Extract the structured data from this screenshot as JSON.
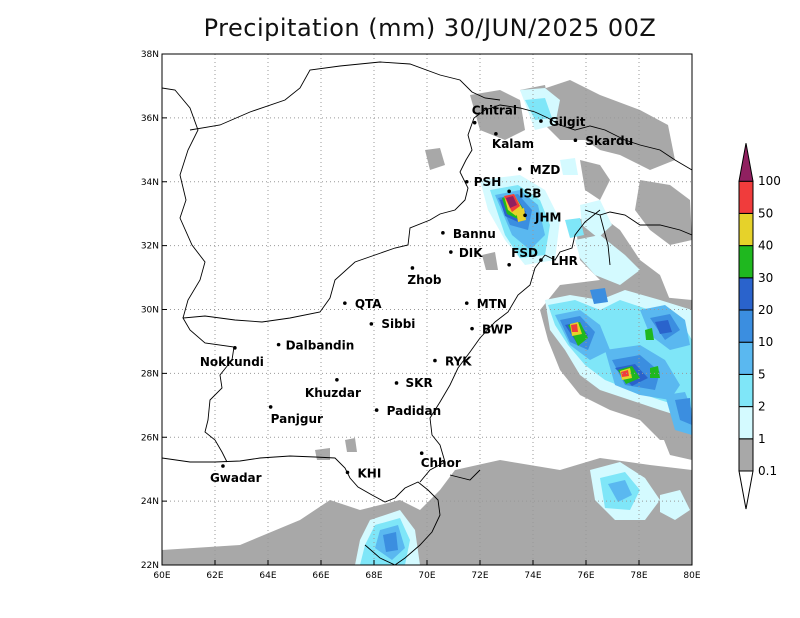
{
  "title": "Precipitation (mm) 30/JUN/2025 00Z",
  "x_ticks": [
    "60E",
    "62E",
    "64E",
    "66E",
    "68E",
    "70E",
    "72E",
    "74E",
    "76E",
    "78E",
    "80E"
  ],
  "y_ticks": [
    "22N",
    "24N",
    "26N",
    "28N",
    "30N",
    "32N",
    "34N",
    "36N",
    "38N"
  ],
  "colorbar": {
    "levels": [
      "0.1",
      "1",
      "2",
      "5",
      "10",
      "20",
      "30",
      "40",
      "50",
      "100"
    ],
    "colors": [
      "#a8a8a8",
      "#d4faff",
      "#7fe6f8",
      "#5ab8f0",
      "#3b8ee0",
      "#2a63cc",
      "#1fb81f",
      "#e6d22a",
      "#f03c3c",
      "#902060"
    ]
  },
  "cities": [
    {
      "name": "Chitral",
      "lon": 71.8,
      "lat": 35.85
    },
    {
      "name": "Kalam",
      "lon": 72.6,
      "lat": 35.5
    },
    {
      "name": "Gilgit",
      "lon": 74.3,
      "lat": 35.9
    },
    {
      "name": "Skardu",
      "lon": 75.6,
      "lat": 35.3
    },
    {
      "name": "MZD",
      "lon": 73.5,
      "lat": 34.4
    },
    {
      "name": "PSH",
      "lon": 71.5,
      "lat": 34.0
    },
    {
      "name": "ISB",
      "lon": 73.1,
      "lat": 33.7
    },
    {
      "name": "JHM",
      "lon": 73.7,
      "lat": 32.95
    },
    {
      "name": "Bannu",
      "lon": 70.6,
      "lat": 32.4
    },
    {
      "name": "DIK",
      "lon": 70.9,
      "lat": 31.8
    },
    {
      "name": "FSD",
      "lon": 73.1,
      "lat": 31.4
    },
    {
      "name": "LHR",
      "lon": 74.3,
      "lat": 31.55
    },
    {
      "name": "Zhob",
      "lon": 69.45,
      "lat": 31.3
    },
    {
      "name": "QTA",
      "lon": 66.9,
      "lat": 30.2
    },
    {
      "name": "MTN",
      "lon": 71.5,
      "lat": 30.2
    },
    {
      "name": "Sibbi",
      "lon": 67.9,
      "lat": 29.55
    },
    {
      "name": "BWP",
      "lon": 71.7,
      "lat": 29.4
    },
    {
      "name": "Dalbandin",
      "lon": 64.4,
      "lat": 28.9
    },
    {
      "name": "Nokkundi",
      "lon": 62.75,
      "lat": 28.8
    },
    {
      "name": "RYK",
      "lon": 70.3,
      "lat": 28.4
    },
    {
      "name": "Khuzdar",
      "lon": 66.6,
      "lat": 27.8
    },
    {
      "name": "SKR",
      "lon": 68.85,
      "lat": 27.7
    },
    {
      "name": "Panjgur",
      "lon": 64.1,
      "lat": 26.95
    },
    {
      "name": "Padidan",
      "lon": 68.1,
      "lat": 26.85
    },
    {
      "name": "Chhor",
      "lon": 69.8,
      "lat": 25.5
    },
    {
      "name": "KHI",
      "lon": 67.0,
      "lat": 24.9
    },
    {
      "name": "Gwadar",
      "lon": 62.3,
      "lat": 25.1
    }
  ]
}
